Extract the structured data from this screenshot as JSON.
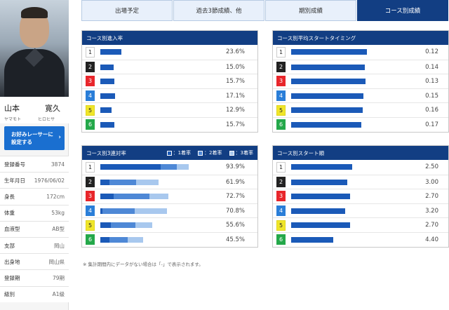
{
  "profile": {
    "name_kanji": [
      "山本",
      "寛久"
    ],
    "name_kana": [
      "ヤマモト",
      "ヒロヒサ"
    ],
    "fav_button": [
      "お好みレーサーに",
      "設定する"
    ],
    "rows": [
      {
        "key": "登録番号",
        "value": "3874"
      },
      {
        "key": "生年月日",
        "value": "1976/06/02"
      },
      {
        "key": "身長",
        "value": "172cm"
      },
      {
        "key": "体重",
        "value": "53kg"
      },
      {
        "key": "血液型",
        "value": "AB型"
      },
      {
        "key": "支部",
        "value": "岡山"
      },
      {
        "key": "出身地",
        "value": "岡山県"
      },
      {
        "key": "登録期",
        "value": "79期"
      },
      {
        "key": "級別",
        "value": "A1級"
      }
    ]
  },
  "tabs": [
    {
      "label": "出場予定",
      "active": false
    },
    {
      "label": "過去3節成績、他",
      "active": false
    },
    {
      "label": "期別成績",
      "active": false
    },
    {
      "label": "コース別成績",
      "active": true
    }
  ],
  "panels": {
    "entry_rate": {
      "title": "コース別進入率",
      "rows": [
        {
          "course": "1",
          "value": "23.6%",
          "pct": 23.6
        },
        {
          "course": "2",
          "value": "15.0%",
          "pct": 15.0
        },
        {
          "course": "3",
          "value": "15.7%",
          "pct": 15.7
        },
        {
          "course": "4",
          "value": "17.1%",
          "pct": 17.1
        },
        {
          "course": "5",
          "value": "12.9%",
          "pct": 12.9
        },
        {
          "course": "6",
          "value": "15.7%",
          "pct": 15.7
        }
      ]
    },
    "start_timing": {
      "title": "コース別平均スタートタイミング",
      "rows": [
        {
          "course": "1",
          "value": "0.12",
          "timing": 0.12
        },
        {
          "course": "2",
          "value": "0.14",
          "timing": 0.14
        },
        {
          "course": "3",
          "value": "0.13",
          "timing": 0.13
        },
        {
          "course": "4",
          "value": "0.15",
          "timing": 0.15
        },
        {
          "course": "5",
          "value": "0.16",
          "timing": 0.16
        },
        {
          "course": "6",
          "value": "0.17",
          "timing": 0.17
        }
      ]
    },
    "top3_rate": {
      "title": "コース別3連対率",
      "legend": [
        "：1着率",
        "：2着率",
        "：3着率"
      ],
      "rows": [
        {
          "course": "1",
          "value": "93.9%",
          "first": 64.4,
          "second": 17.0,
          "third": 12.5
        },
        {
          "course": "2",
          "value": "61.9%",
          "first": 9.5,
          "second": 28.5,
          "third": 23.9
        },
        {
          "course": "3",
          "value": "72.7%",
          "first": 14.5,
          "second": 38.0,
          "third": 20.2
        },
        {
          "course": "4",
          "value": "70.8%",
          "first": 2.5,
          "second": 34.0,
          "third": 34.3
        },
        {
          "course": "5",
          "value": "55.6%",
          "first": 11.0,
          "second": 26.0,
          "third": 18.6
        },
        {
          "course": "6",
          "value": "45.5%",
          "first": 9.5,
          "second": 19.5,
          "third": 16.5
        }
      ]
    },
    "start_rank": {
      "title": "コース別スタート順",
      "rows": [
        {
          "course": "1",
          "value": "2.50",
          "rank": 2.5
        },
        {
          "course": "2",
          "value": "3.00",
          "rank": 3.0
        },
        {
          "course": "3",
          "value": "2.70",
          "rank": 2.7
        },
        {
          "course": "4",
          "value": "3.20",
          "rank": 3.2
        },
        {
          "course": "5",
          "value": "2.70",
          "rank": 2.7
        },
        {
          "course": "6",
          "value": "4.40",
          "rank": 4.4
        }
      ]
    }
  },
  "footnote": "※ 集計期間内にデータがない場合は「-」で表示されます。",
  "colors": {
    "header_navy": "#123e83",
    "bar_dark": "#1b5ab8",
    "bar_mid": "#4e88d6",
    "bar_light": "#a8c8ee"
  }
}
